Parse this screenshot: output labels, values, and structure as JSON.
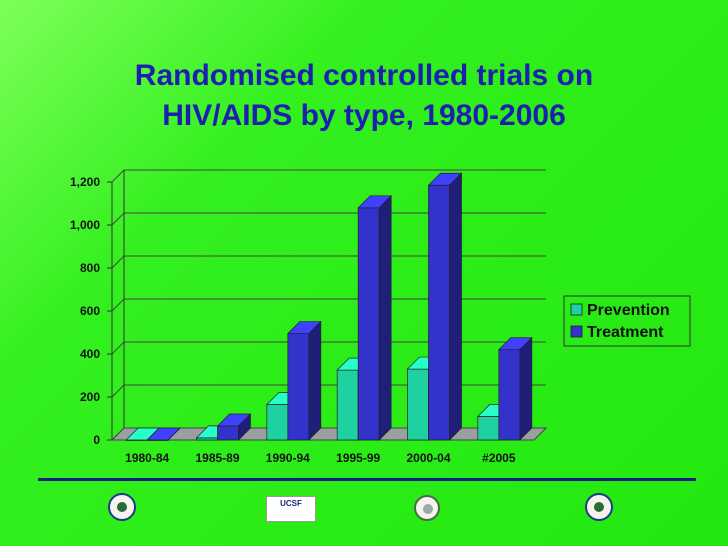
{
  "slide": {
    "title_line1": "Randomised controlled trials on",
    "title_line2": "HIV/AIDS by type, 1980-2006",
    "title_color": "#1d1fb0",
    "background_color": "#22e80f"
  },
  "chart_data": {
    "type": "bar",
    "style": "3d-clustered-column",
    "title": "",
    "xlabel": "",
    "ylabel": "",
    "categories": [
      "1980-84",
      "1985-89",
      "1990-94",
      "1995-99",
      "2000-04",
      "#2005"
    ],
    "yticks": [
      "0",
      "200",
      "400",
      "600",
      "800",
      "1,000",
      "1,200"
    ],
    "ylim": [
      0,
      1200
    ],
    "grid": true,
    "legend_position": "right",
    "series": [
      {
        "name": "Prevention",
        "color": "#1fd0a0",
        "values": [
          0,
          10,
          165,
          325,
          330,
          110
        ]
      },
      {
        "name": "Treatment",
        "color": "#3333cc",
        "values": [
          0,
          65,
          495,
          1080,
          1185,
          420
        ]
      }
    ]
  },
  "logos": [
    {
      "name": "seal-left"
    },
    {
      "name": "ucsf-logo",
      "text": "UCSF"
    },
    {
      "name": "emblem-center"
    },
    {
      "name": "seal-right"
    }
  ]
}
